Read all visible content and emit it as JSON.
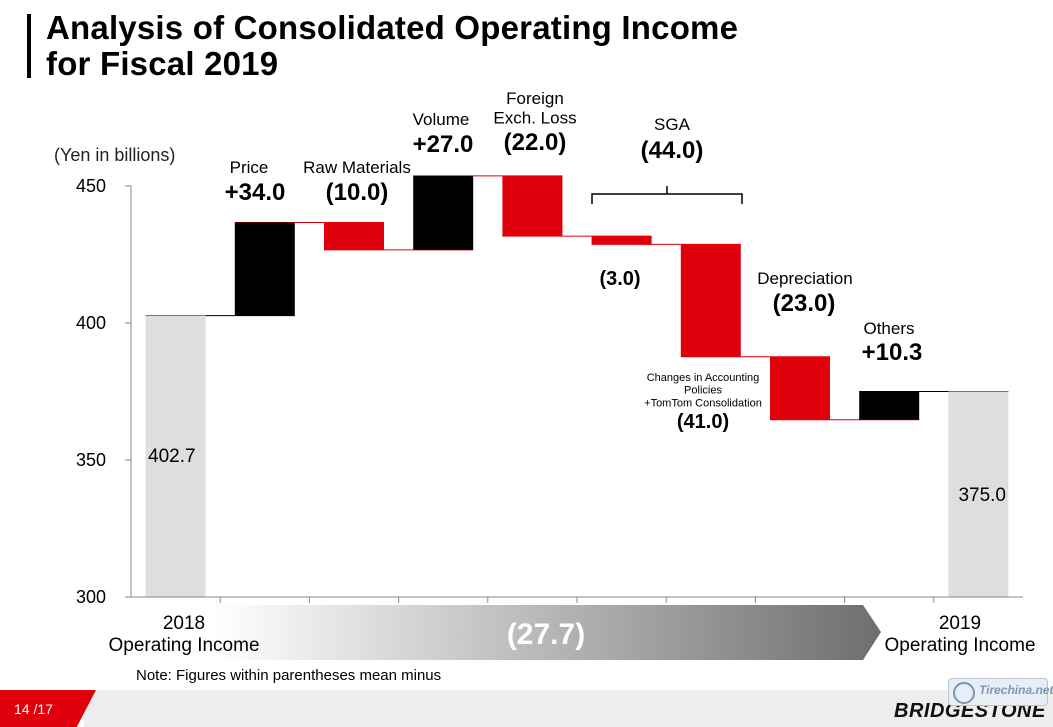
{
  "title_line1": "Analysis of Consolidated Operating Income",
  "title_line2": "for Fiscal 2019",
  "note": "Note: Figures within parentheses mean minus",
  "page_number": "14 /17",
  "brand": "BRIDGESTONE",
  "watermark_text": "Tirechina.net",
  "chart_data": {
    "type": "bar",
    "subtype": "waterfall",
    "unit_label": "(Yen in billions)",
    "ylim": [
      300,
      450
    ],
    "yticks": [
      300,
      350,
      400,
      450
    ],
    "grid": false,
    "steps": [
      {
        "label": "2018\nOperating Income",
        "value": 402.7,
        "kind": "total",
        "value_label": "402.7"
      },
      {
        "label": "Price",
        "value": 34.0,
        "kind": "increase",
        "value_label": "+34.0"
      },
      {
        "label": "Raw Materials",
        "value": -10.0,
        "kind": "decrease",
        "value_label": "(10.0)"
      },
      {
        "label": "Volume",
        "value": 27.0,
        "kind": "increase",
        "value_label": "+27.0"
      },
      {
        "label": "Foreign\nExch. Loss",
        "value": -22.0,
        "kind": "decrease",
        "value_label": "(22.0)"
      },
      {
        "label": "",
        "value": -3.0,
        "kind": "decrease",
        "value_label": "(3.0)"
      },
      {
        "label": "Changes in Accounting\nPolicies\n+TomTom Consolidation",
        "value": -41.0,
        "kind": "decrease",
        "value_label": "(41.0)"
      },
      {
        "label": "Depreciation",
        "value": -23.0,
        "kind": "decrease",
        "value_label": "(23.0)"
      },
      {
        "label": "Others",
        "value": 10.3,
        "kind": "increase",
        "value_label": "+10.3"
      },
      {
        "label": "2019\nOperating Income",
        "value": 375.0,
        "kind": "total",
        "value_label": "375.0"
      }
    ],
    "group": {
      "label": "SGA",
      "value_label": "(44.0)",
      "from_step": 5,
      "to_step": 6
    },
    "net_change_label": "(27.7)",
    "colors": {
      "total": "#dedede",
      "increase": "#000000",
      "decrease": "#e0000b",
      "arrow_light": "#ffffff",
      "arrow_dark": "#6e6e6e"
    }
  }
}
